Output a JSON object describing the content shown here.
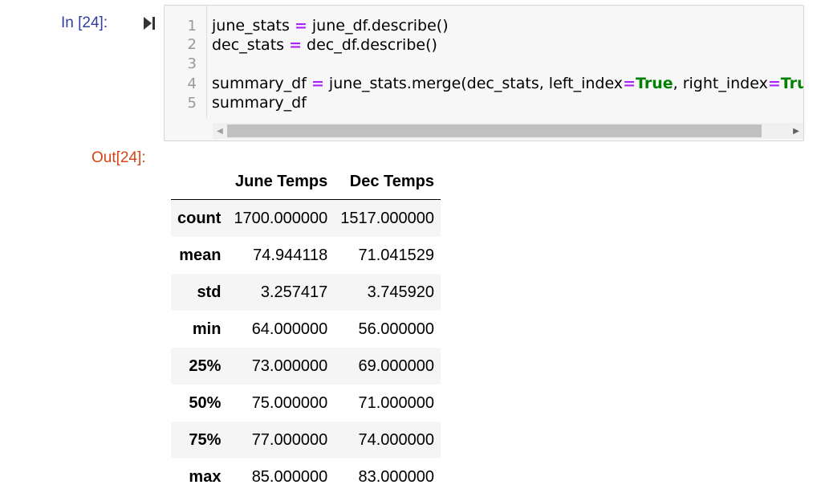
{
  "input_prompt": "In [24]:",
  "output_prompt": "Out[24]:",
  "code": {
    "line_numbers": [
      "1",
      "2",
      "3",
      "4",
      "5"
    ],
    "line1": {
      "a": "june_stats ",
      "op": "=",
      "b": " june_df.describe()"
    },
    "line2": {
      "a": "dec_stats ",
      "op": "=",
      "b": " dec_df.describe()"
    },
    "line4": {
      "a": "summary_df ",
      "op1": "=",
      "b": " june_stats.merge(dec_stats, left_index",
      "op2": "=",
      "kw1": "True",
      "c": ", right_index",
      "op3": "=",
      "kw2": "Tru"
    },
    "line5": "summary_df"
  },
  "table": {
    "columns": [
      "June Temps",
      "Dec Temps"
    ],
    "rows": [
      {
        "index": "count",
        "values": [
          "1700.000000",
          "1517.000000"
        ]
      },
      {
        "index": "mean",
        "values": [
          "74.944118",
          "71.041529"
        ]
      },
      {
        "index": "std",
        "values": [
          "3.257417",
          "3.745920"
        ]
      },
      {
        "index": "min",
        "values": [
          "64.000000",
          "56.000000"
        ]
      },
      {
        "index": "25%",
        "values": [
          "73.000000",
          "69.000000"
        ]
      },
      {
        "index": "50%",
        "values": [
          "75.000000",
          "71.000000"
        ]
      },
      {
        "index": "75%",
        "values": [
          "77.000000",
          "74.000000"
        ]
      },
      {
        "index": "max",
        "values": [
          "85.000000",
          "83.000000"
        ]
      }
    ]
  },
  "icons": {
    "run": "run-cell-icon",
    "scroll_left": "scroll-left-arrow-icon",
    "scroll_right": "scroll-right-arrow-icon"
  },
  "colors": {
    "input_prompt": "#303f9f",
    "output_prompt": "#d84315",
    "operator": "#aa22ff",
    "keyword": "#008000"
  }
}
